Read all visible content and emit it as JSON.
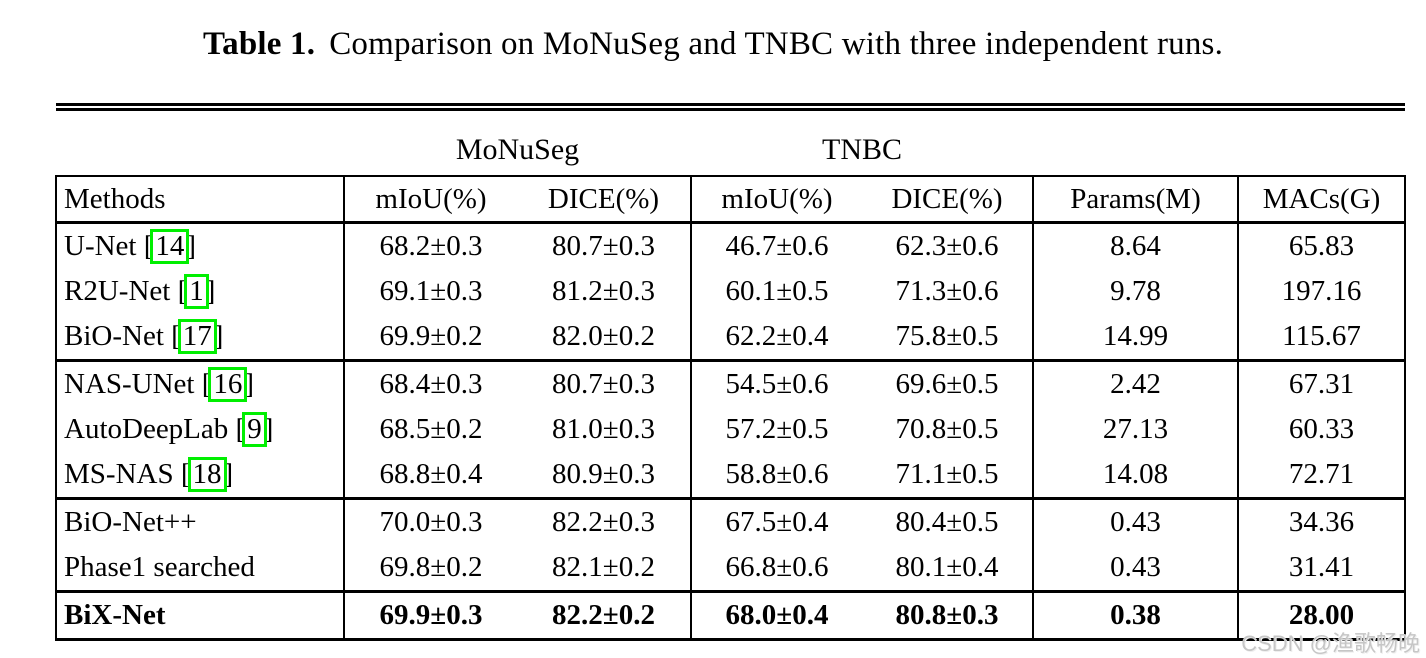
{
  "caption": {
    "label": "Table 1.",
    "text": "Comparison on MoNuSeg and TNBC with three independent runs."
  },
  "watermark": "CSDN @渔歌畅晚",
  "colors": {
    "citation_box": "#00ef00",
    "text": "#000000",
    "watermark": "#c6c6c6"
  },
  "table": {
    "dataset_headers": [
      "MoNuSeg",
      "TNBC"
    ],
    "columns": [
      "Methods",
      "mIoU(%)",
      "DICE(%)",
      "mIoU(%)",
      "DICE(%)",
      "Params(M)",
      "MACs(G)"
    ],
    "groups": [
      {
        "rows": [
          {
            "method": "U-Net",
            "cite": "14",
            "values": [
              "68.2±0.3",
              "80.7±0.3",
              "46.7±0.6",
              "62.3±0.6",
              "8.64",
              "65.83"
            ]
          },
          {
            "method": "R2U-Net",
            "cite": "1",
            "values": [
              "69.1±0.3",
              "81.2±0.3",
              "60.1±0.5",
              "71.3±0.6",
              "9.78",
              "197.16"
            ]
          },
          {
            "method": "BiO-Net",
            "cite": "17",
            "values": [
              "69.9±0.2",
              "82.0±0.2",
              "62.2±0.4",
              "75.8±0.5",
              "14.99",
              "115.67"
            ]
          }
        ]
      },
      {
        "rows": [
          {
            "method": "NAS-UNet",
            "cite": "16",
            "values": [
              "68.4±0.3",
              "80.7±0.3",
              "54.5±0.6",
              "69.6±0.5",
              "2.42",
              "67.31"
            ]
          },
          {
            "method": "AutoDeepLab",
            "cite": "9",
            "values": [
              "68.5±0.2",
              "81.0±0.3",
              "57.2±0.5",
              "70.8±0.5",
              "27.13",
              "60.33"
            ]
          },
          {
            "method": "MS-NAS",
            "cite": "18",
            "values": [
              "68.8±0.4",
              "80.9±0.3",
              "58.8±0.6",
              "71.1±0.5",
              "14.08",
              "72.71"
            ]
          }
        ]
      },
      {
        "rows": [
          {
            "method": "BiO-Net++",
            "cite": null,
            "values": [
              "70.0±0.3",
              "82.2±0.3",
              "67.5±0.4",
              "80.4±0.5",
              "0.43",
              "34.36"
            ]
          },
          {
            "method": "Phase1 searched",
            "cite": null,
            "values": [
              "69.8±0.2",
              "82.1±0.2",
              "66.8±0.6",
              "80.1±0.4",
              "0.43",
              "31.41"
            ]
          }
        ]
      },
      {
        "rows": [
          {
            "method": "BiX-Net",
            "cite": null,
            "bold": true,
            "values": [
              "69.9±0.3",
              "82.2±0.2",
              "68.0±0.4",
              "80.8±0.3",
              "0.38",
              "28.00"
            ]
          }
        ]
      }
    ]
  }
}
